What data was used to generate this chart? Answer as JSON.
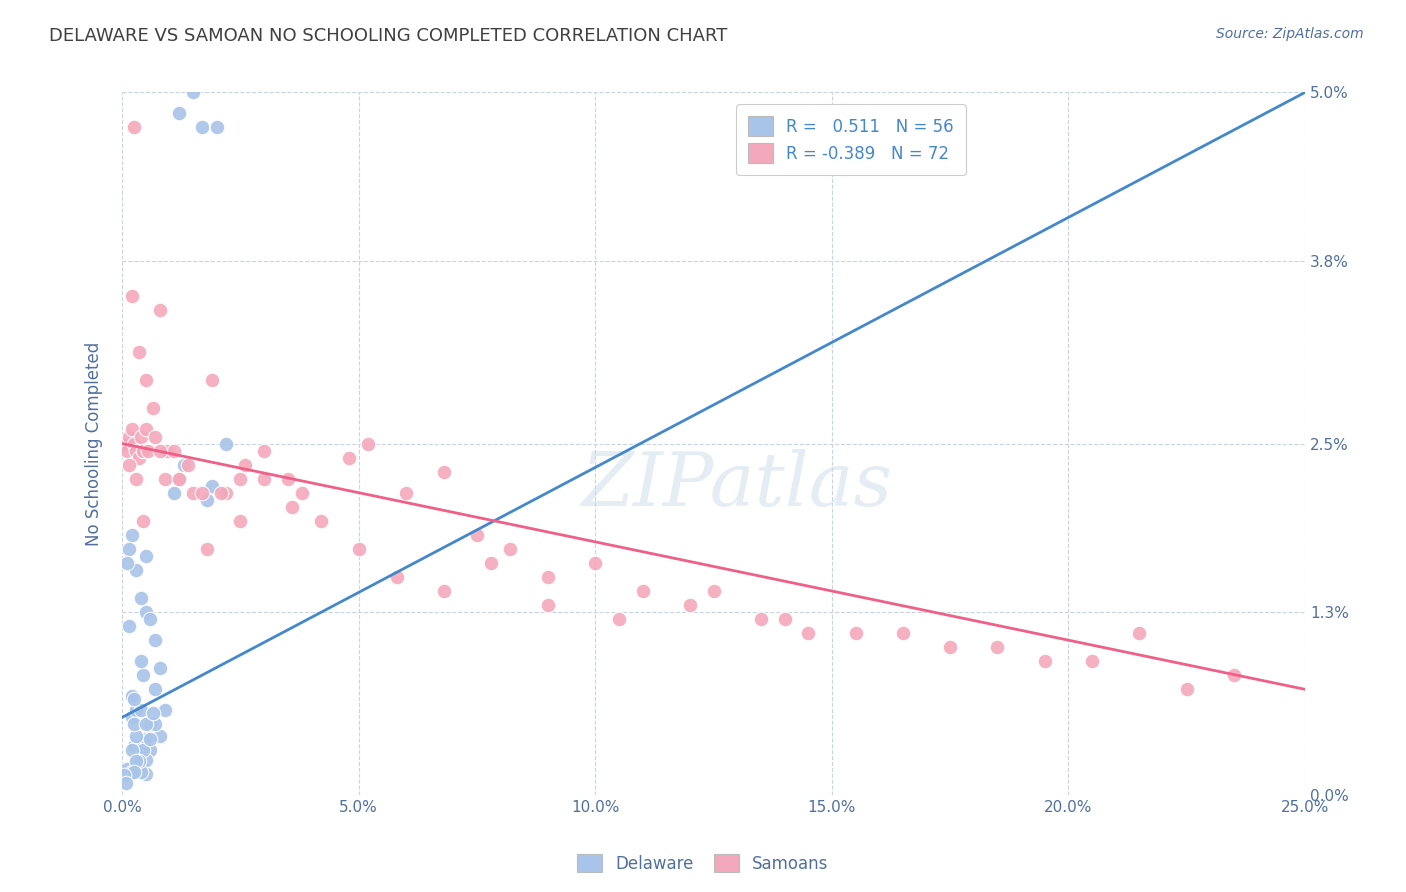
{
  "title": "DELAWARE VS SAMOAN NO SCHOOLING COMPLETED CORRELATION CHART",
  "source": "Source: ZipAtlas.com",
  "xlabel_vals": [
    0.0,
    5.0,
    10.0,
    15.0,
    20.0,
    25.0
  ],
  "ylabel_vals": [
    0.0,
    1.3,
    2.5,
    3.8,
    5.0
  ],
  "ylabel_label": "No Schooling Completed",
  "legend_labels": [
    "Delaware",
    "Samoans"
  ],
  "R_delaware": 0.511,
  "N_delaware": 56,
  "R_samoans": -0.389,
  "N_samoans": 72,
  "delaware_color": "#a8c4e8",
  "samoans_color": "#f4a8bc",
  "delaware_line_color": "#4488cc",
  "samoans_line_color": "#ee6088",
  "background_color": "#ffffff",
  "grid_color": "#c8d4e4",
  "text_color": "#5070a0",
  "title_color": "#404040",
  "xlim": [
    0.0,
    25.0
  ],
  "ylim": [
    0.0,
    5.0
  ],
  "delaware_line_x0": 0.0,
  "delaware_line_y0": 0.55,
  "delaware_line_x1": 25.0,
  "delaware_line_y1": 5.0,
  "samoans_line_x0": 0.0,
  "samoans_line_y0": 2.5,
  "samoans_line_x1": 25.0,
  "samoans_line_y1": 0.75,
  "delaware_x": [
    1.2,
    1.7,
    2.0,
    1.5,
    0.15,
    0.2,
    0.25,
    0.3,
    0.35,
    0.1,
    0.4,
    0.5,
    0.3,
    0.2,
    0.4,
    0.6,
    0.7,
    0.8,
    0.5,
    0.6,
    0.7,
    0.4,
    0.3,
    0.5,
    0.2,
    0.15,
    0.1,
    0.4,
    0.5,
    0.6,
    0.8,
    0.9,
    0.7,
    0.5,
    0.45,
    0.3,
    0.25,
    0.4,
    0.2,
    0.35,
    0.25,
    0.45,
    0.4,
    0.5,
    0.6,
    0.65,
    0.2,
    0.3,
    0.25,
    1.8,
    1.9,
    1.1,
    1.3,
    2.2,
    0.05,
    0.08
  ],
  "delaware_y": [
    4.85,
    4.75,
    4.75,
    5.0,
    1.2,
    0.55,
    0.35,
    0.25,
    0.2,
    0.18,
    0.35,
    0.4,
    0.6,
    0.7,
    0.6,
    0.5,
    0.75,
    0.9,
    1.3,
    1.25,
    1.1,
    1.4,
    1.6,
    1.7,
    1.85,
    1.75,
    1.65,
    0.22,
    0.15,
    0.32,
    0.42,
    0.6,
    0.5,
    0.25,
    0.32,
    0.42,
    0.5,
    0.16,
    0.32,
    0.24,
    0.68,
    0.85,
    0.95,
    0.5,
    0.4,
    0.58,
    0.16,
    0.24,
    0.16,
    2.1,
    2.2,
    2.15,
    2.35,
    2.5,
    0.14,
    0.08
  ],
  "samoans_x": [
    0.05,
    0.1,
    0.15,
    0.2,
    0.25,
    0.3,
    0.35,
    0.4,
    0.45,
    0.5,
    0.2,
    0.35,
    0.5,
    0.65,
    0.8,
    0.95,
    1.2,
    1.5,
    1.9,
    2.2,
    2.6,
    3.0,
    3.5,
    3.8,
    4.8,
    5.2,
    6.0,
    6.8,
    7.5,
    8.2,
    9.0,
    10.0,
    11.0,
    12.0,
    13.5,
    14.5,
    15.5,
    17.5,
    19.5,
    21.5,
    23.5,
    0.15,
    0.3,
    0.55,
    0.7,
    0.9,
    1.1,
    1.4,
    1.7,
    2.1,
    2.5,
    3.0,
    3.6,
    4.2,
    5.0,
    5.8,
    6.8,
    7.8,
    9.0,
    10.5,
    12.5,
    14.0,
    16.5,
    18.5,
    20.5,
    22.5,
    0.25,
    0.45,
    0.8,
    1.2,
    1.8,
    2.5
  ],
  "samoans_y": [
    2.5,
    2.45,
    2.55,
    2.6,
    2.5,
    2.45,
    2.4,
    2.55,
    2.45,
    2.6,
    3.55,
    3.15,
    2.95,
    2.75,
    3.45,
    2.45,
    2.25,
    2.15,
    2.95,
    2.15,
    2.35,
    2.45,
    2.25,
    2.15,
    2.4,
    2.5,
    2.15,
    2.3,
    1.85,
    1.75,
    1.55,
    1.65,
    1.45,
    1.35,
    1.25,
    1.15,
    1.15,
    1.05,
    0.95,
    1.15,
    0.85,
    2.35,
    2.25,
    2.45,
    2.55,
    2.25,
    2.45,
    2.35,
    2.15,
    2.15,
    1.95,
    2.25,
    2.05,
    1.95,
    1.75,
    1.55,
    1.45,
    1.65,
    1.35,
    1.25,
    1.45,
    1.25,
    1.15,
    1.05,
    0.95,
    0.75,
    4.75,
    1.95,
    2.45,
    2.25,
    1.75,
    2.25
  ]
}
